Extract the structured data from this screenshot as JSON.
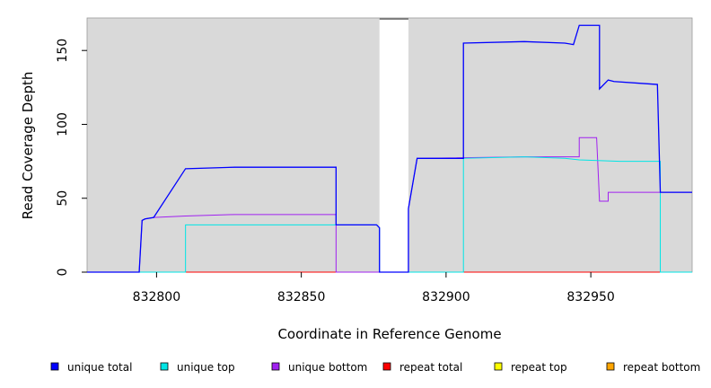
{
  "chart_data": {
    "type": "line",
    "title": "",
    "xlabel": "Coordinate in Reference Genome",
    "ylabel": "Read Coverage Depth",
    "xlim": [
      832776,
      832985
    ],
    "ylim": [
      0,
      172
    ],
    "x_ticks": [
      832800,
      832850,
      832900,
      832950
    ],
    "y_ticks": [
      0,
      50,
      100,
      150
    ],
    "background": "#d9d9d9",
    "gaps": [
      {
        "x0": 832877,
        "x1": 832887,
        "label": ""
      }
    ],
    "series": [
      {
        "name": "unique total",
        "color": "#0000ff",
        "points": [
          [
            832776,
            0
          ],
          [
            832794,
            0
          ],
          [
            832795,
            35
          ],
          [
            832796,
            36
          ],
          [
            832799,
            37
          ],
          [
            832810,
            70
          ],
          [
            832827,
            71
          ],
          [
            832862,
            71
          ],
          [
            832862,
            32
          ],
          [
            832876,
            32
          ],
          [
            832877,
            30
          ],
          [
            832877,
            0
          ],
          [
            832887,
            0
          ],
          [
            832887,
            43
          ],
          [
            832890,
            77
          ],
          [
            832906,
            77
          ],
          [
            832906,
            155
          ],
          [
            832927,
            156
          ],
          [
            832941,
            155
          ],
          [
            832944,
            154
          ],
          [
            832946,
            167
          ],
          [
            832953,
            167
          ],
          [
            832953,
            124
          ],
          [
            832956,
            130
          ],
          [
            832958,
            129
          ],
          [
            832973,
            127
          ],
          [
            832974,
            54
          ],
          [
            832985,
            54
          ]
        ]
      },
      {
        "name": "unique top",
        "color": "#00e5e5",
        "points": [
          [
            832776,
            0
          ],
          [
            832810,
            0
          ],
          [
            832810,
            32
          ],
          [
            832876,
            32
          ],
          [
            832877,
            30
          ],
          [
            832877,
            0
          ],
          [
            832887,
            0
          ],
          [
            832906,
            0
          ],
          [
            832906,
            77
          ],
          [
            832927,
            78
          ],
          [
            832941,
            77
          ],
          [
            832946,
            76
          ],
          [
            832960,
            75
          ],
          [
            832974,
            75
          ],
          [
            832974,
            0
          ],
          [
            832985,
            0
          ]
        ]
      },
      {
        "name": "unique bottom",
        "color": "#a020f0",
        "points": [
          [
            832776,
            0
          ],
          [
            832794,
            0
          ],
          [
            832795,
            35
          ],
          [
            832796,
            36
          ],
          [
            832799,
            37
          ],
          [
            832810,
            38
          ],
          [
            832827,
            39
          ],
          [
            832862,
            39
          ],
          [
            832862,
            0
          ],
          [
            832877,
            0
          ],
          [
            832887,
            0
          ],
          [
            832887,
            43
          ],
          [
            832890,
            77
          ],
          [
            832927,
            78
          ],
          [
            832946,
            78
          ],
          [
            832946,
            91
          ],
          [
            832952,
            91
          ],
          [
            832953,
            48
          ],
          [
            832956,
            48
          ],
          [
            832956,
            54
          ],
          [
            832985,
            54
          ]
        ]
      },
      {
        "name": "repeat total",
        "color": "#ff0000",
        "points": [
          [
            832776,
            0
          ],
          [
            832985,
            0
          ]
        ]
      },
      {
        "name": "repeat top",
        "color": "#ffff00",
        "points": [
          [
            832776,
            0
          ],
          [
            832985,
            0
          ]
        ]
      },
      {
        "name": "repeat bottom",
        "color": "#ffa500",
        "points": [
          [
            832776,
            0
          ],
          [
            832985,
            0
          ]
        ]
      }
    ],
    "legend": {
      "position": "bottom",
      "entries": [
        {
          "label": "unique total",
          "color": "#0000ff"
        },
        {
          "label": "unique top",
          "color": "#00e5e5"
        },
        {
          "label": "unique bottom",
          "color": "#a020f0"
        },
        {
          "label": "repeat total",
          "color": "#ff0000"
        },
        {
          "label": "repeat top",
          "color": "#ffff00"
        },
        {
          "label": "repeat bottom",
          "color": "#ffa500"
        }
      ]
    }
  }
}
